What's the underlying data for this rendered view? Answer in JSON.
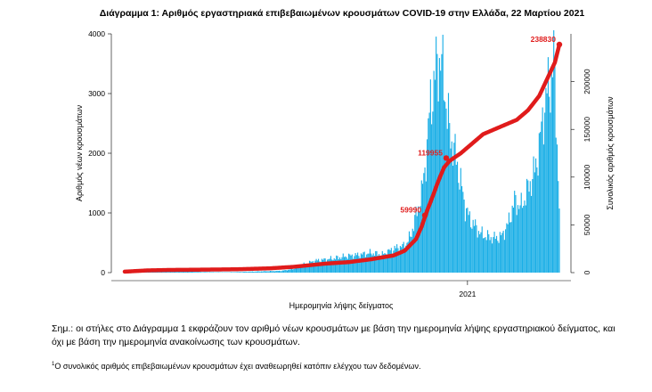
{
  "chart_data": {
    "type": "bar+line",
    "title": "Διάγραμμα 1: Αριθμός εργαστηριακά επιβεβαιωμένων κρουσμάτων COVID-19 στην Ελλάδα, 22 Μαρτίου 2021",
    "xlabel": "Ημερομηνία λήψης δείγματος",
    "ylabel_left": "Αριθμός νέων κρουσμάτων",
    "ylabel_right": "Συνολικός αριθμός κρουσμάτων",
    "ylim_left": [
      0,
      4000
    ],
    "yticks_left": [
      0,
      1000,
      2000,
      3000,
      4000
    ],
    "ylim_right": [
      0,
      250000
    ],
    "yticks_right": [
      0,
      50000,
      100000,
      150000,
      200000
    ],
    "x_tick_labels": [
      {
        "day": 306,
        "label": "2021"
      }
    ],
    "day_count": 388,
    "colors": {
      "bars": "#19aee6",
      "line": "#e01b1b",
      "highlight": "#e01b1b"
    },
    "series": [
      {
        "name": "new-cases",
        "kind": "bar",
        "anchors": [
          [
            0,
            2
          ],
          [
            10,
            5
          ],
          [
            20,
            25
          ],
          [
            30,
            45
          ],
          [
            40,
            60
          ],
          [
            50,
            25
          ],
          [
            60,
            15
          ],
          [
            70,
            10
          ],
          [
            80,
            8
          ],
          [
            90,
            6
          ],
          [
            100,
            10
          ],
          [
            110,
            15
          ],
          [
            120,
            20
          ],
          [
            130,
            25
          ],
          [
            140,
            30
          ],
          [
            150,
            60
          ],
          [
            160,
            140
          ],
          [
            170,
            200
          ],
          [
            180,
            220
          ],
          [
            190,
            250
          ],
          [
            200,
            280
          ],
          [
            210,
            300
          ],
          [
            220,
            330
          ],
          [
            230,
            300
          ],
          [
            240,
            400
          ],
          [
            250,
            450
          ],
          [
            255,
            600
          ],
          [
            260,
            950
          ],
          [
            265,
            1300
          ],
          [
            270,
            2100
          ],
          [
            273,
            2900
          ],
          [
            276,
            3100
          ],
          [
            279,
            3600
          ],
          [
            282,
            3500
          ],
          [
            285,
            3300
          ],
          [
            288,
            2600
          ],
          [
            292,
            2200
          ],
          [
            296,
            1900
          ],
          [
            300,
            1500
          ],
          [
            304,
            1100
          ],
          [
            308,
            900
          ],
          [
            312,
            800
          ],
          [
            318,
            650
          ],
          [
            324,
            600
          ],
          [
            330,
            580
          ],
          [
            336,
            600
          ],
          [
            342,
            800
          ],
          [
            348,
            1200
          ],
          [
            354,
            1100
          ],
          [
            360,
            1400
          ],
          [
            366,
            1700
          ],
          [
            370,
            2100
          ],
          [
            374,
            2700
          ],
          [
            377,
            3000
          ],
          [
            380,
            3200
          ],
          [
            383,
            3600
          ],
          [
            386,
            2200
          ],
          [
            388,
            1100
          ]
        ]
      },
      {
        "name": "cumulative",
        "kind": "line",
        "anchors": [
          [
            0,
            1000
          ],
          [
            20,
            2300
          ],
          [
            40,
            2800
          ],
          [
            60,
            3000
          ],
          [
            100,
            3500
          ],
          [
            130,
            4500
          ],
          [
            150,
            6000
          ],
          [
            180,
            9500
          ],
          [
            200,
            11000
          ],
          [
            220,
            14000
          ],
          [
            240,
            18000
          ],
          [
            250,
            23000
          ],
          [
            260,
            35000
          ],
          [
            265,
            48000
          ],
          [
            270,
            65000
          ],
          [
            275,
            80000
          ],
          [
            280,
            96000
          ],
          [
            285,
            110000
          ],
          [
            290,
            117000
          ],
          [
            300,
            125000
          ],
          [
            310,
            135000
          ],
          [
            320,
            145000
          ],
          [
            330,
            150000
          ],
          [
            340,
            155000
          ],
          [
            350,
            160000
          ],
          [
            360,
            170000
          ],
          [
            370,
            185000
          ],
          [
            378,
            205000
          ],
          [
            384,
            220000
          ],
          [
            388,
            238830
          ]
        ]
      }
    ],
    "annotations": [
      {
        "text": "238830",
        "day": 388,
        "value": 238830,
        "axis": "right"
      },
      {
        "text": "119955",
        "day": 287,
        "value": 119955,
        "axis": "right"
      },
      {
        "text": "59990",
        "day": 268,
        "value": 59990,
        "axis": "right"
      }
    ]
  },
  "note_main": "Σημ.: οι στήλες στο Διάγραμμα 1 εκφράζουν τον αριθμό νέων κρουσμάτων με βάση την ημερομηνία λήψης εργαστηριακού δείγματος, και όχι με βάση την ημερομηνία ανακοίνωσης των κρουσμάτων.",
  "footnote_mark": "1",
  "footnote": "Ο συνολικός αριθμός επιβεβαιωμένων κρουσμάτων έχει αναθεωρηθεί κατόπιν ελέγχου των δεδομένων."
}
